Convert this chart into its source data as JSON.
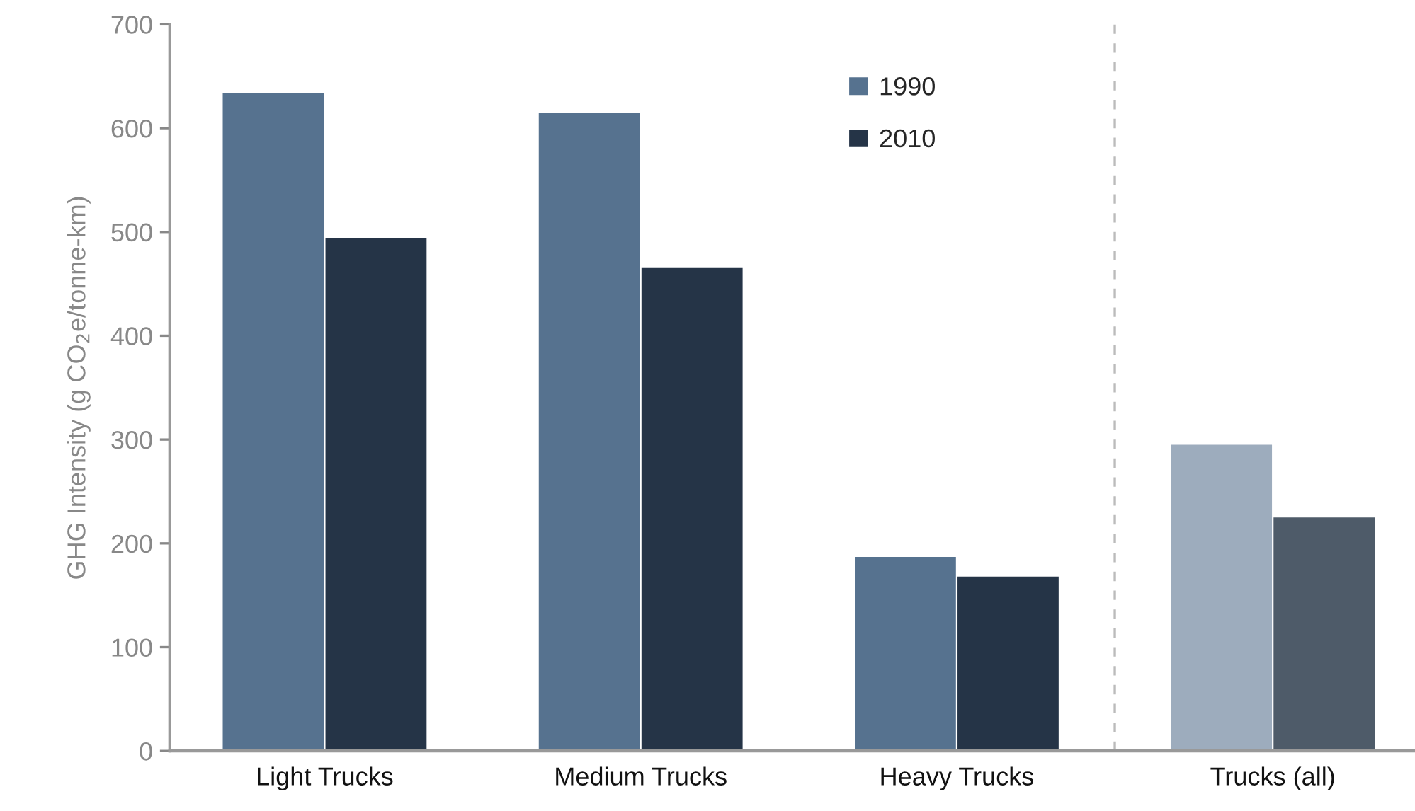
{
  "chart_data": {
    "type": "bar",
    "ylabel": "GHG Intensity (g CO$_{2}$e/tonne-km)",
    "categories": [
      "Light Trucks",
      "Medium Trucks",
      "Heavy Trucks",
      "Trucks (all)"
    ],
    "series": [
      {
        "name": "1990",
        "color": "#56728f",
        "colors": [
          "#56728f",
          "#56728f",
          "#56728f",
          "#9dacbd"
        ],
        "values": [
          634,
          615,
          187,
          295
        ]
      },
      {
        "name": "2010",
        "color": "#253447",
        "colors": [
          "#253447",
          "#253447",
          "#253447",
          "#4e5b69"
        ],
        "values": [
          494,
          466,
          168,
          225
        ]
      }
    ],
    "ylim": [
      0,
      700
    ],
    "yticks": [
      0,
      100,
      200,
      300,
      400,
      500,
      600,
      700
    ],
    "grid": false,
    "legend": "top"
  }
}
